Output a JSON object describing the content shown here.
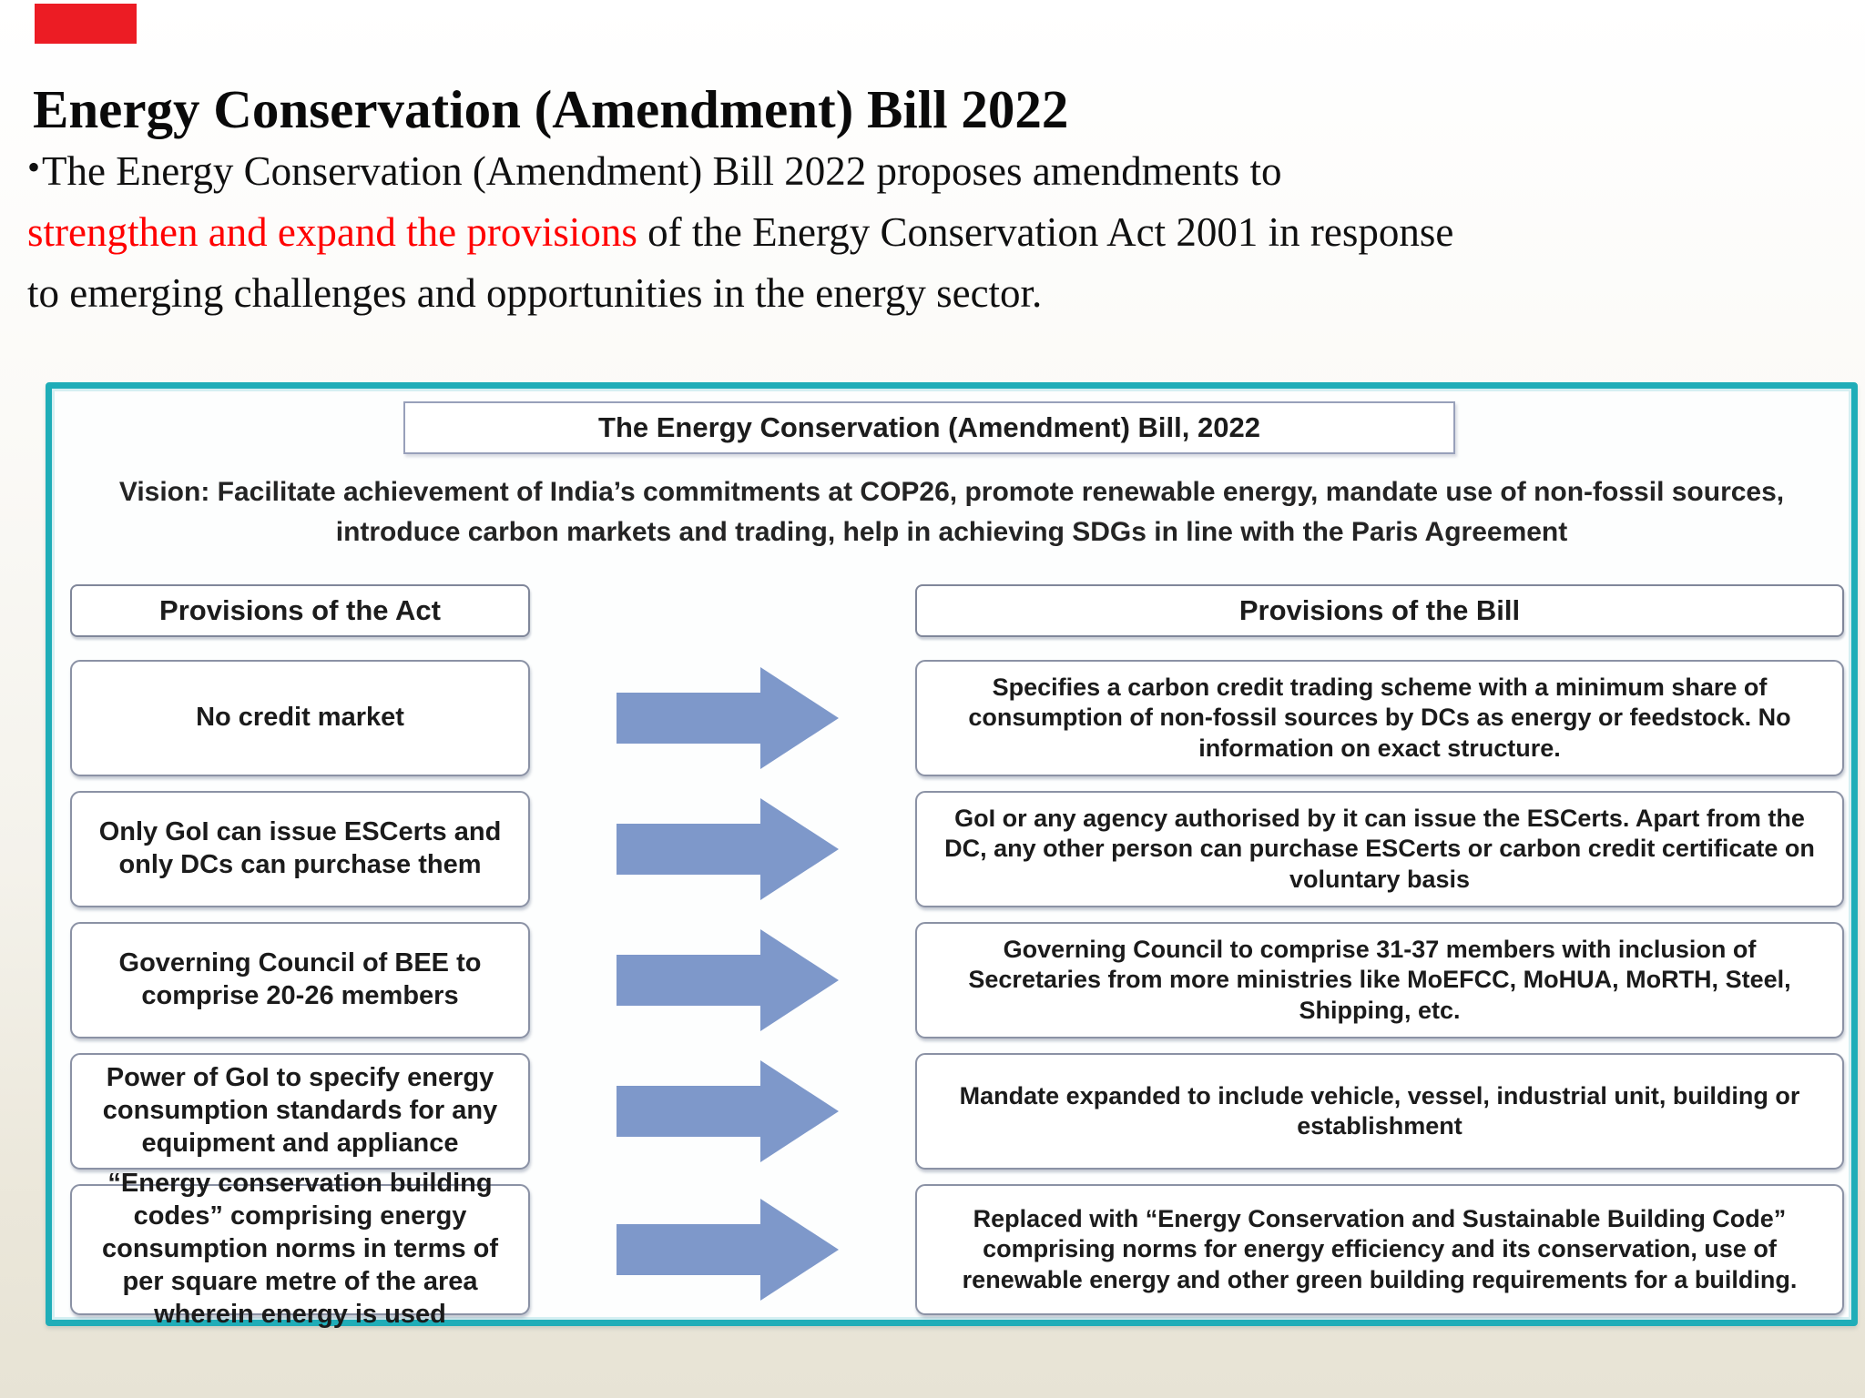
{
  "slide": {
    "corner_marker_color": "#EC1C24",
    "title": "Energy Conservation (Amendment) Bill 2022",
    "bullet_char": "•",
    "paragraph": {
      "line1": "The Energy Conservation (Amendment) Bill 2022 proposes amendments to",
      "line2_highlight": "strengthen and expand the provisions",
      "line2_rest": " of the Energy Conservation Act 2001 in response",
      "line3": "to emerging challenges and opportunities in the energy sector.",
      "highlight_color": "#FF0000"
    }
  },
  "diagram": {
    "title": "The Energy Conservation (Amendment) Bill, 2022",
    "vision": "Vision: Facilitate achievement of India’s commitments at COP26, promote renewable energy, mandate use of non-fossil sources, introduce carbon markets and trading, help in achieving SDGs in line with the Paris Agreement",
    "left_header": "Provisions of the Act",
    "right_header": "Provisions of the Bill",
    "rows": [
      {
        "act": "No credit market",
        "bill": "Specifies a carbon credit trading scheme with a minimum share of consumption of non-fossil sources by DCs as energy or feedstock. No information on exact structure."
      },
      {
        "act": "Only GoI can issue ESCerts and only DCs can purchase them",
        "bill": "GoI or any agency authorised by it can issue the ESCerts. Apart from the DC, any other person can purchase ESCerts or carbon credit certificate on voluntary basis"
      },
      {
        "act": "Governing Council of BEE to comprise 20-26 members",
        "bill": "Governing Council to comprise 31-37 members with inclusion of Secretaries from more ministries like MoEFCC, MoHUA, MoRTH, Steel, Shipping, etc."
      },
      {
        "act": "Power of GoI to specify energy consumption standards for any equipment and appliance",
        "bill": "Mandate expanded to include vehicle, vessel, industrial unit, building or establishment"
      },
      {
        "act": "“Energy conservation building codes” comprising energy consumption norms in terms of per square metre of the area wherein energy is used",
        "bill": "Replaced with “Energy Conservation and Sustainable Building Code” comprising norms for energy efficiency and its conservation, use of renewable energy and other green building requirements for a building."
      }
    ],
    "colors": {
      "frame_teal": "#1FADB8",
      "arrow_blue": "#7E98CA"
    }
  }
}
